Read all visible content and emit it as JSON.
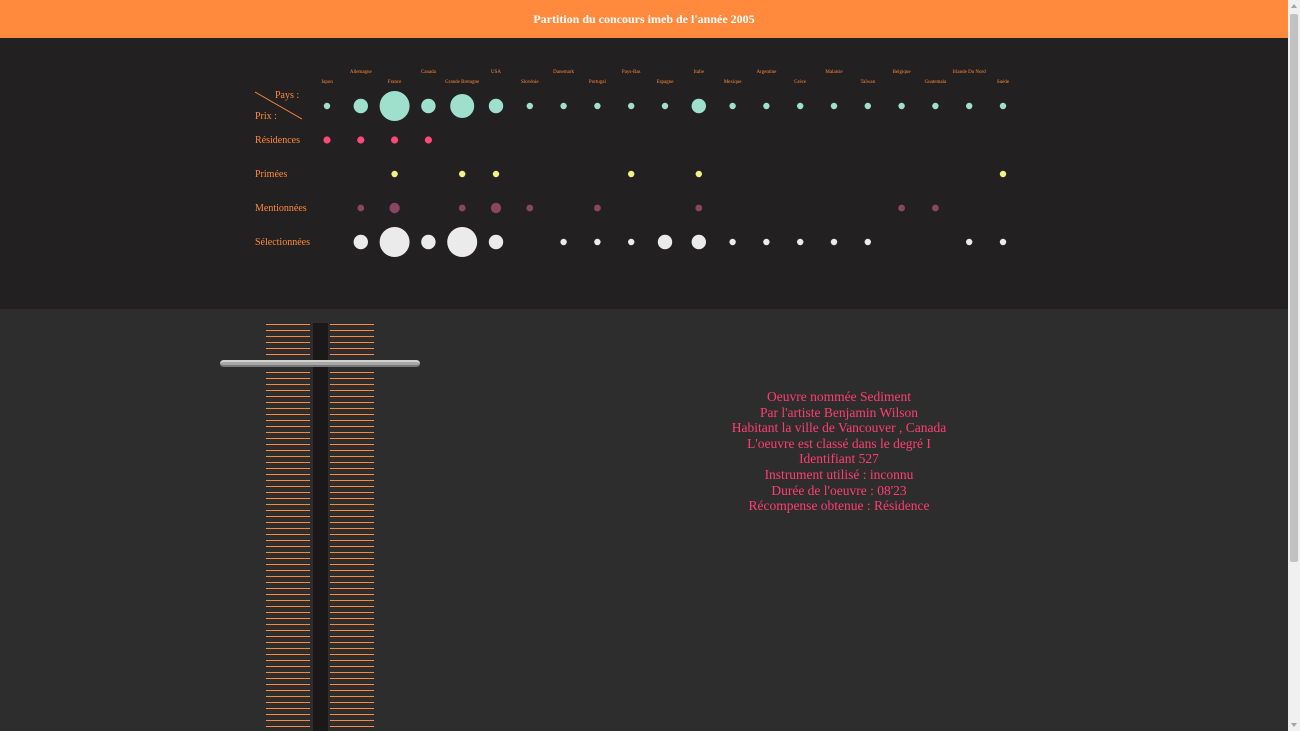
{
  "header": {
    "title": "Partition du concours imeb de l'année 2005"
  },
  "score": {
    "corner_top": "Pays :",
    "corner_bottom": "Prix :",
    "rows": [
      {
        "key": "countries",
        "label": "",
        "color": "#9ee0cc"
      },
      {
        "key": "residences",
        "label": "Résidences",
        "color": "#ff4a78"
      },
      {
        "key": "primees",
        "label": "Primées",
        "color": "#f2f08a"
      },
      {
        "key": "mentionnees",
        "label": "Mentionnées",
        "color": "#8a4560"
      },
      {
        "key": "selectionnees",
        "label": "Sélectionnées",
        "color": "#ebebeb"
      }
    ],
    "countries": [
      {
        "name": "Japon",
        "label_row": "low",
        "dot_size": 1
      },
      {
        "name": "Allemagne",
        "label_row": "high",
        "dot_size": 2
      },
      {
        "name": "France",
        "label_row": "low",
        "dot_size": 4
      },
      {
        "name": "Canada",
        "label_row": "high",
        "dot_size": 2
      },
      {
        "name": "Grande Bretagne",
        "label_row": "low",
        "dot_size": 3
      },
      {
        "name": "USA",
        "label_row": "high",
        "dot_size": 2
      },
      {
        "name": "Slovénie",
        "label_row": "low",
        "dot_size": 1
      },
      {
        "name": "Danemark",
        "label_row": "high",
        "dot_size": 1
      },
      {
        "name": "Portugal",
        "label_row": "low",
        "dot_size": 1
      },
      {
        "name": "Pays-Bas",
        "label_row": "high",
        "dot_size": 1
      },
      {
        "name": "Espagne",
        "label_row": "low",
        "dot_size": 1
      },
      {
        "name": "Italie",
        "label_row": "high",
        "dot_size": 2
      },
      {
        "name": "Mexique",
        "label_row": "low",
        "dot_size": 1
      },
      {
        "name": "Argentine",
        "label_row": "high",
        "dot_size": 1
      },
      {
        "name": "Grèce",
        "label_row": "low",
        "dot_size": 1
      },
      {
        "name": "Malaisie",
        "label_row": "high",
        "dot_size": 1
      },
      {
        "name": "Taïwan",
        "label_row": "low",
        "dot_size": 1
      },
      {
        "name": "Belgique",
        "label_row": "high",
        "dot_size": 1
      },
      {
        "name": "Guatemala",
        "label_row": "low",
        "dot_size": 1
      },
      {
        "name": "Irlande Du Nord",
        "label_row": "high",
        "dot_size": 1
      },
      {
        "name": "Suède",
        "label_row": "low",
        "dot_size": 1
      }
    ],
    "prize_counts": {
      "residences": [
        1,
        1,
        1,
        1,
        0,
        0,
        0,
        0,
        0,
        0,
        0,
        0,
        0,
        0,
        0,
        0,
        0,
        0,
        0,
        0,
        0
      ],
      "primees": [
        0,
        0,
        1,
        0,
        1,
        1,
        0,
        0,
        0,
        1,
        0,
        1,
        0,
        0,
        0,
        0,
        0,
        0,
        0,
        0,
        1
      ],
      "mentionnees": [
        0,
        1,
        2,
        0,
        1,
        2,
        1,
        0,
        1,
        0,
        0,
        1,
        0,
        0,
        0,
        0,
        0,
        1,
        1,
        0,
        0
      ],
      "selectionnees": [
        0,
        2,
        4,
        2,
        4,
        2,
        0,
        1,
        1,
        1,
        2,
        2,
        1,
        1,
        1,
        1,
        1,
        0,
        0,
        1,
        1
      ]
    }
  },
  "fader": {
    "level": 0.91
  },
  "work": {
    "lines": [
      "Oeuvre nommée Sediment",
      "Par l'artiste Benjamin Wilson",
      "Habitant la ville de Vancouver , Canada",
      "L'oeuvre est classé dans le degré I",
      "Identifiant 527",
      "Instrument utilisé : inconnu",
      "Durée de l'oeuvre : 08'23",
      "Récompense obtenue : Résidence"
    ]
  }
}
